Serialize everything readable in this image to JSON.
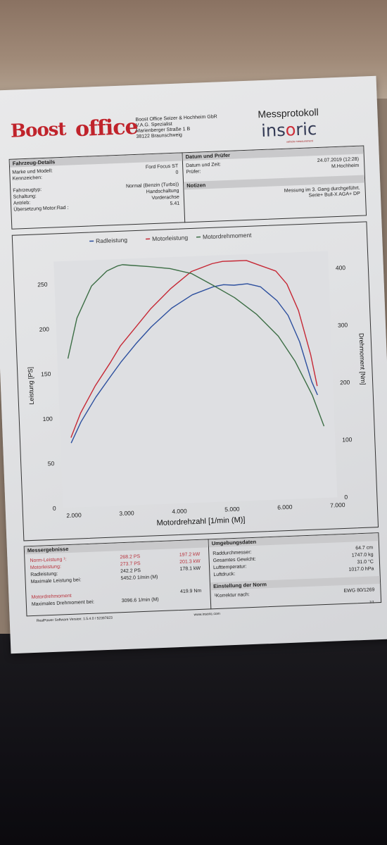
{
  "company": {
    "logo_word1": "Boost",
    "logo_word2": "office",
    "address_lines": [
      "Boost Office Seizer & Hochheim GbR",
      "V.A.G. Spezialist",
      "Marienberger Straße 1 B",
      "38122 Braunschweig"
    ]
  },
  "protocol": {
    "title": "Messprotokoll",
    "brand": "insoric",
    "brand_tagline": "vehicle measurement"
  },
  "vehicle": {
    "section_title": "Fahrzeug-Details",
    "rows_left": [
      {
        "label": "Marke und Modell:",
        "value": "Ford Focus ST"
      },
      {
        "label": "Kennzeichen:",
        "value": "0"
      },
      {
        "label": "Fahrzeugtyp:",
        "value": "Normal (Benzin (Turbo))"
      },
      {
        "label": "Schaltung:",
        "value": "Handschaltung"
      },
      {
        "label": "Antrieb:",
        "value": "Vorderachse"
      },
      {
        "label": "Übersetzung Motor:Rad :",
        "value": "5.41"
      }
    ]
  },
  "date_check": {
    "section_title": "Datum und Prüfer",
    "date_label": "Datum und Zeit:",
    "date_value": "24.07.2019 (12:28)",
    "tester_label": "Prüfer:",
    "tester_value": "M.Hochheim"
  },
  "notes": {
    "section_title": "Notizen",
    "line1": "Messung im 3. Gang durchgeführt.",
    "line2": "Serie+ Bull-X AGA+ DP"
  },
  "chart_data": {
    "type": "line",
    "legend": [
      "Radleistung",
      "Motorleistung",
      "Motordrehmoment"
    ],
    "xlabel": "Motordrehzahl [1/min (M)]",
    "ylabel_left": "Leistung [PS]",
    "ylabel_right": "Drehmoment [Nm]",
    "xlim": [
      1800,
      7000
    ],
    "ylim_left": [
      0,
      275
    ],
    "ylim_right": [
      0,
      430
    ],
    "x_ticks": [
      "2.000",
      "3.000",
      "4.000",
      "5.000",
      "6.000",
      "7.000"
    ],
    "y_ticks_left": [
      "0",
      "50",
      "100",
      "150",
      "200",
      "250"
    ],
    "y_ticks_right": [
      "0",
      "100",
      "200",
      "300",
      "400"
    ],
    "colors": {
      "Radleistung": "#2c4f9e",
      "Motorleistung": "#c62835",
      "Motordrehmoment": "#3c6e45"
    },
    "series": [
      {
        "name": "Radleistung",
        "axis": "left",
        "x": [
          2000,
          2200,
          2500,
          2800,
          3000,
          3300,
          3600,
          4000,
          4400,
          4800,
          5000,
          5200,
          5450,
          5700,
          6000,
          6200,
          6400,
          6600,
          6700
        ],
        "values": [
          72,
          95,
          122,
          145,
          160,
          180,
          198,
          218,
          232,
          240,
          242,
          241,
          242,
          238,
          222,
          205,
          175,
          130,
          115
        ]
      },
      {
        "name": "Motorleistung",
        "axis": "left",
        "x": [
          2000,
          2200,
          2500,
          2800,
          3000,
          3300,
          3600,
          4000,
          4400,
          4800,
          5000,
          5200,
          5450,
          5700,
          6000,
          6200,
          6400,
          6600,
          6700
        ],
        "values": [
          78,
          105,
          135,
          160,
          178,
          198,
          218,
          240,
          258,
          266,
          268,
          268,
          268,
          262,
          255,
          240,
          210,
          160,
          125
        ]
      },
      {
        "name": "Motordrehmoment",
        "axis": "right",
        "x": [
          2000,
          2200,
          2500,
          2800,
          3000,
          3100,
          3300,
          3600,
          4000,
          4400,
          4800,
          5200,
          5600,
          6000,
          6300,
          6600,
          6800
        ],
        "values": [
          260,
          330,
          385,
          410,
          418,
          420,
          418,
          415,
          410,
          400,
          378,
          355,
          325,
          285,
          240,
          180,
          125
        ]
      }
    ]
  },
  "results": {
    "section_title": "Messergebnisse",
    "rows": [
      {
        "label": "Norm-Leistung ¹:",
        "ps": "268.2 PS",
        "kw": "197.2 kW"
      },
      {
        "label": "Motorleistung:",
        "ps": "273.7 PS",
        "kw": "201.3 kW"
      },
      {
        "label": "Radleistung:",
        "ps": "242.2 PS",
        "kw": "178.1 kW"
      }
    ],
    "max_power_label": "Maximale Leistung bei:",
    "max_power_value": "5452.0 1/min (M)",
    "torque_label": "Motordrehmoment",
    "torque_value": "419.9 Nm",
    "max_torque_label": "Maximales Drehmoment bei:",
    "max_torque_value": "3096.6 1/min (M)"
  },
  "environment": {
    "section_title": "Umgebungsdaten",
    "rows": [
      {
        "label": "Raddurchmesser:",
        "value": "64.7 cm"
      },
      {
        "label": "Gesamtes Gewicht:",
        "value": "1747.0 kg"
      },
      {
        "label": "Lufttemperatur:",
        "value": "31.0 °C"
      },
      {
        "label": "Luftdruck:",
        "value": "1017.0 hPa"
      }
    ]
  },
  "norm": {
    "section_title": "Einstellung der Norm",
    "label": "¹Korrektur nach:",
    "value": "EWG 80/1269"
  },
  "footer": {
    "software": "RealPower Software Version: 1.5.4.0 / 52397823",
    "website": "www.insoric.com",
    "page": "1/1"
  }
}
